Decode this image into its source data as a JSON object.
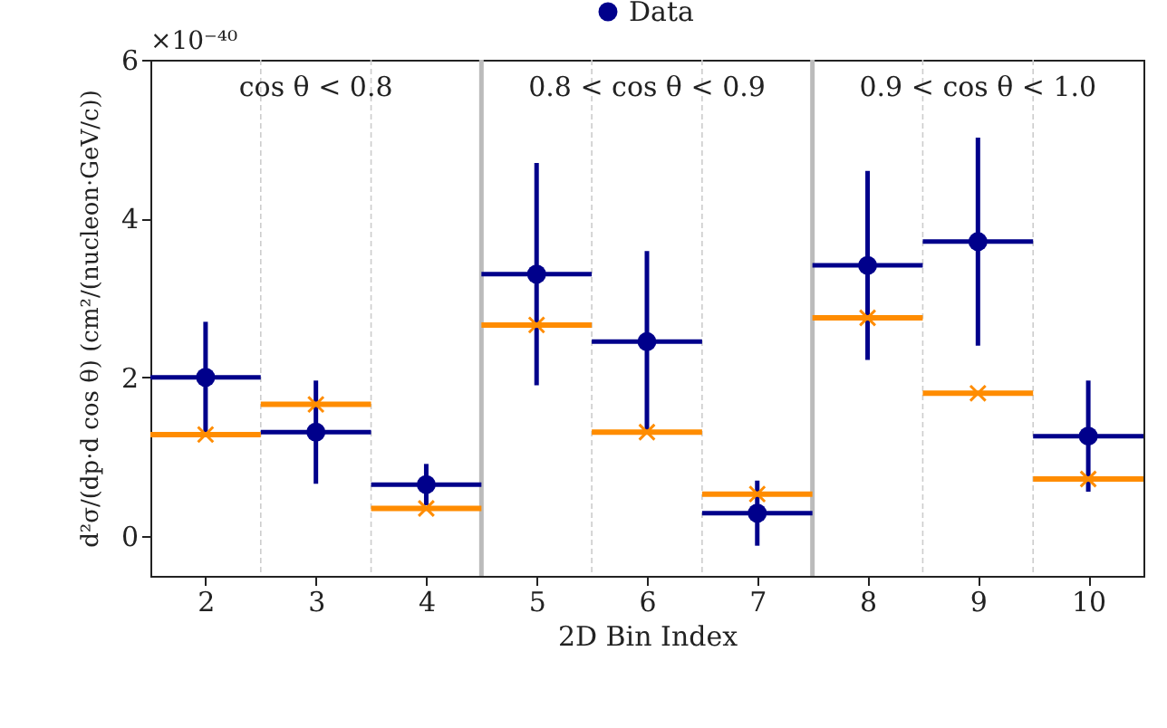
{
  "chart_data": {
    "type": "scatter",
    "xlabel": "2D Bin Index",
    "ylabel": "d²σ/(dp·d cos θ) (cm²/(nucleon·GeV/c))",
    "x": [
      2,
      3,
      4,
      5,
      6,
      7,
      8,
      9,
      10
    ],
    "series": [
      {
        "name": "Data",
        "color": "#00008b",
        "marker": "circle",
        "values": [
          2.0,
          1.31,
          0.65,
          3.3,
          2.45,
          0.29,
          3.41,
          3.71,
          1.26
        ],
        "errors": [
          0.7,
          0.65,
          0.26,
          1.4,
          1.14,
          0.41,
          1.19,
          1.31,
          0.7
        ],
        "xerrors": [
          0.5,
          0.5,
          0.5,
          0.5,
          0.5,
          0.5,
          0.5,
          0.5,
          0.5
        ]
      },
      {
        "color": "#ff8c00",
        "marker": "cross",
        "values": [
          1.28,
          1.66,
          0.35,
          2.66,
          1.31,
          0.53,
          2.75,
          1.8,
          0.72
        ],
        "xerrors": [
          0.5,
          0.5,
          0.5,
          0.5,
          0.5,
          0.5,
          0.5,
          0.5,
          0.5
        ]
      }
    ],
    "xlim": [
      1.5,
      10.5
    ],
    "xticks": [
      2,
      3,
      4,
      5,
      6,
      7,
      8,
      9,
      10
    ],
    "ylim": [
      -0.5,
      6
    ],
    "yticks": [
      0,
      2,
      4,
      6
    ],
    "ref_lines": [
      {
        "axis": "x",
        "value": 2.5,
        "color": "#cccccc",
        "line_style": "dashed"
      },
      {
        "axis": "x",
        "value": 3.5,
        "color": "#cccccc",
        "line_style": "dashed"
      },
      {
        "axis": "x",
        "value": 4.5,
        "color": "#bbbbbb",
        "line_style": "solid"
      },
      {
        "axis": "x",
        "value": 5.5,
        "color": "#cccccc",
        "line_style": "dashed"
      },
      {
        "axis": "x",
        "value": 6.5,
        "color": "#cccccc",
        "line_style": "dashed"
      },
      {
        "axis": "x",
        "value": 7.5,
        "color": "#bbbbbb",
        "line_style": "solid"
      },
      {
        "axis": "x",
        "value": 8.5,
        "color": "#cccccc",
        "line_style": "dashed"
      },
      {
        "axis": "x",
        "value": 9.5,
        "color": "#cccccc",
        "line_style": "dashed"
      }
    ],
    "annotations": [
      "×10⁻⁴⁰",
      "cos θ < 0.8",
      "0.8 < cos θ < 0.9",
      "0.9 < cos θ < 1.0"
    ],
    "grid": false,
    "legend": "top right"
  }
}
